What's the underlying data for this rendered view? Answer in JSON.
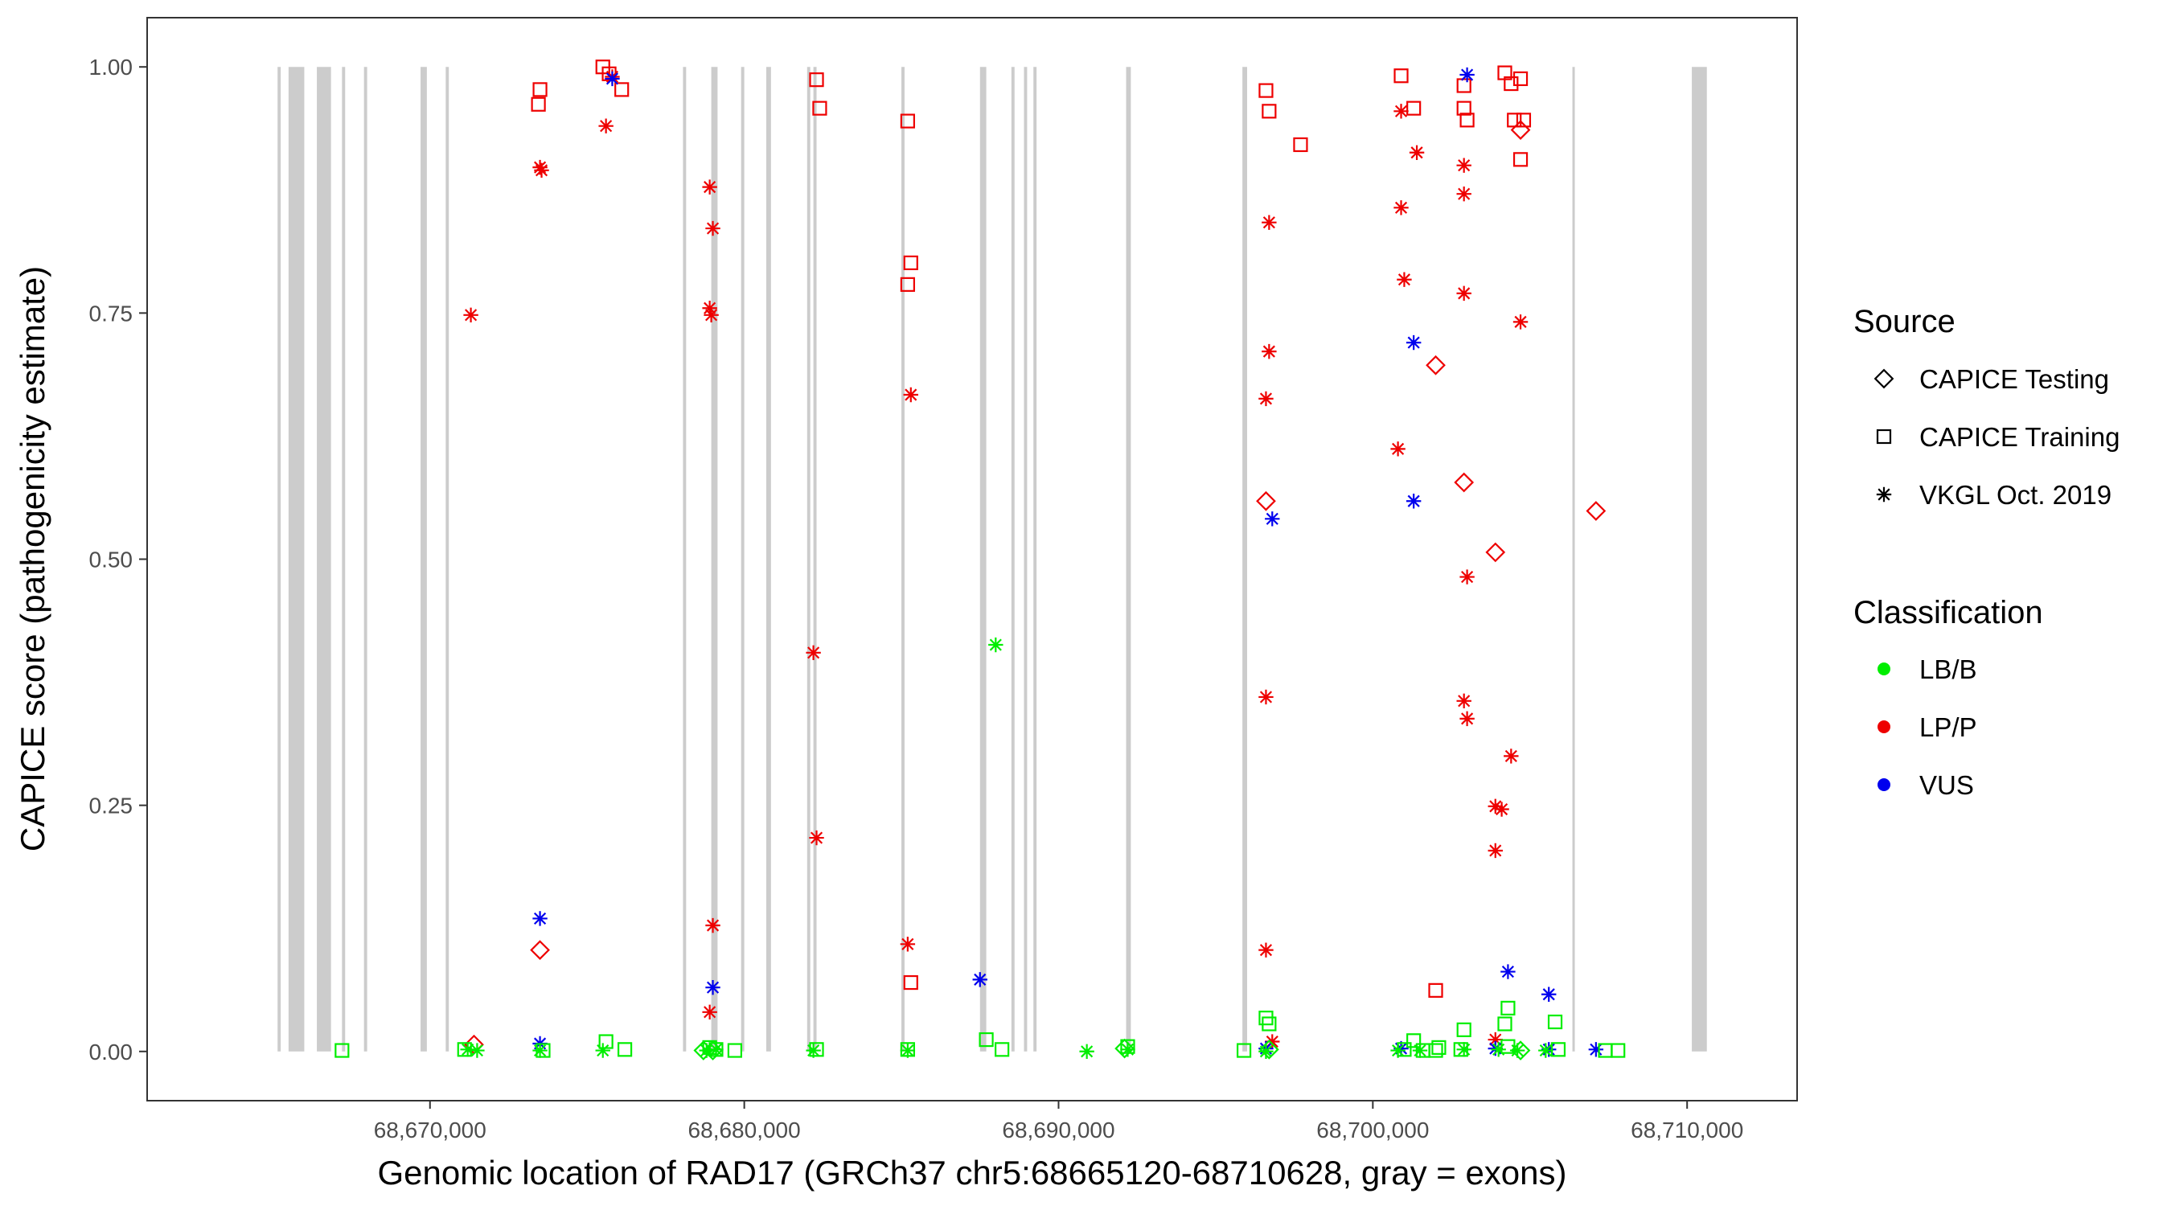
{
  "chart_data": {
    "type": "scatter",
    "xlabel": "Genomic location of RAD17 (GRCh37 chr5:68665120-68710628, gray = exons)",
    "ylabel": "CAPICE score (pathogenicity estimate)",
    "xlim": [
      68661000,
      68713500
    ],
    "ylim": [
      -0.05,
      1.05
    ],
    "x_ticks": [
      68670000,
      68680000,
      68690000,
      68700000,
      68710000
    ],
    "x_tick_labels": [
      "68,670,000",
      "68,680,000",
      "68,690,000",
      "68,700,000",
      "68,710,000"
    ],
    "y_ticks": [
      0,
      0.25,
      0.5,
      0.75,
      1.0
    ],
    "y_tick_labels": [
      "0.00",
      "0.25",
      "0.50",
      "0.75",
      "1.00"
    ],
    "grid": false,
    "legend_position": "right",
    "exons": [
      [
        68665150,
        68665250
      ],
      [
        68665500,
        68666000
      ],
      [
        68666400,
        68666850
      ],
      [
        68667200,
        68667300
      ],
      [
        68667900,
        68668000
      ],
      [
        68669700,
        68669900
      ],
      [
        68670500,
        68670600
      ],
      [
        68678050,
        68678150
      ],
      [
        68678950,
        68679150
      ],
      [
        68679900,
        68680000
      ],
      [
        68680700,
        68680850
      ],
      [
        68682000,
        68682100
      ],
      [
        68682200,
        68682300
      ],
      [
        68685000,
        68685100
      ],
      [
        68687500,
        68687700
      ],
      [
        68688500,
        68688600
      ],
      [
        68688900,
        68689000
      ],
      [
        68689200,
        68689300
      ],
      [
        68692150,
        68692300
      ],
      [
        68695850,
        68696000
      ],
      [
        68706350,
        68706400
      ],
      [
        68710150,
        68710628
      ]
    ],
    "exon_color": "#cccccc",
    "legend": {
      "source": {
        "title": "Source",
        "items": [
          {
            "label": "CAPICE Testing",
            "shape": "diamond"
          },
          {
            "label": "CAPICE Training",
            "shape": "square"
          },
          {
            "label": "VKGL Oct. 2019",
            "shape": "asterisk"
          }
        ]
      },
      "classification": {
        "title": "Classification",
        "items": [
          {
            "label": "LB/B",
            "color": "#00ee00"
          },
          {
            "label": "LP/P",
            "color": "#ee0000"
          },
          {
            "label": "VUS",
            "color": "#0000ee"
          }
        ]
      }
    },
    "series": [
      {
        "classification": "LP/P",
        "source": "CAPICE Training",
        "color": "#ee0000",
        "shape": "square",
        "points": [
          [
            68673500,
            0.977
          ],
          [
            68673450,
            0.962
          ],
          [
            68675500,
            1.0
          ],
          [
            68675700,
            0.993
          ],
          [
            68676100,
            0.977
          ],
          [
            68682300,
            0.987
          ],
          [
            68682400,
            0.958
          ],
          [
            68685200,
            0.945
          ],
          [
            68685300,
            0.801
          ],
          [
            68685200,
            0.779
          ],
          [
            68685300,
            0.07
          ],
          [
            68696600,
            0.976
          ],
          [
            68696700,
            0.955
          ],
          [
            68697700,
            0.921
          ],
          [
            68700900,
            0.991
          ],
          [
            68701300,
            0.958
          ],
          [
            68702000,
            0.062
          ],
          [
            68702900,
            0.981
          ],
          [
            68702900,
            0.958
          ],
          [
            68703000,
            0.946
          ],
          [
            68704200,
            0.994
          ],
          [
            68704400,
            0.983
          ],
          [
            68704700,
            0.988
          ],
          [
            68704500,
            0.946
          ],
          [
            68704800,
            0.946
          ],
          [
            68704700,
            0.906
          ]
        ]
      },
      {
        "classification": "LP/P",
        "source": "VKGL Oct. 2019",
        "color": "#ee0000",
        "shape": "asterisk",
        "points": [
          [
            68671300,
            0.748
          ],
          [
            68673500,
            0.898
          ],
          [
            68673550,
            0.895
          ],
          [
            68675600,
            0.94
          ],
          [
            68675800,
            0.99
          ],
          [
            68678900,
            0.878
          ],
          [
            68679000,
            0.836
          ],
          [
            68678900,
            0.755
          ],
          [
            68678950,
            0.748
          ],
          [
            68679000,
            0.128
          ],
          [
            68678900,
            0.04
          ],
          [
            68682200,
            0.405
          ],
          [
            68682300,
            0.217
          ],
          [
            68685300,
            0.667
          ],
          [
            68685200,
            0.109
          ],
          [
            68696700,
            0.842
          ],
          [
            68696700,
            0.711
          ],
          [
            68696600,
            0.663
          ],
          [
            68696600,
            0.36
          ],
          [
            68696600,
            0.103
          ],
          [
            68696800,
            0.01
          ],
          [
            68700900,
            0.955
          ],
          [
            68701400,
            0.913
          ],
          [
            68700900,
            0.857
          ],
          [
            68701000,
            0.784
          ],
          [
            68700800,
            0.612
          ],
          [
            68702900,
            0.9
          ],
          [
            68702900,
            0.871
          ],
          [
            68702900,
            0.77
          ],
          [
            68703000,
            0.482
          ],
          [
            68702900,
            0.356
          ],
          [
            68703000,
            0.338
          ],
          [
            68704400,
            0.3
          ],
          [
            68703900,
            0.249
          ],
          [
            68704100,
            0.246
          ],
          [
            68703900,
            0.204
          ],
          [
            68704700,
            0.741
          ],
          [
            68703900,
            0.012
          ]
        ]
      },
      {
        "classification": "LP/P",
        "source": "CAPICE Testing",
        "color": "#ee0000",
        "shape": "diamond",
        "points": [
          [
            68671400,
            0.007
          ],
          [
            68673500,
            0.103
          ],
          [
            68696600,
            0.559
          ],
          [
            68702000,
            0.697
          ],
          [
            68702900,
            0.578
          ],
          [
            68703900,
            0.507
          ],
          [
            68704700,
            0.936
          ],
          [
            68707100,
            0.549
          ]
        ]
      },
      {
        "classification": "VUS",
        "source": "VKGL Oct. 2019",
        "color": "#0000ee",
        "shape": "asterisk",
        "points": [
          [
            68673500,
            0.135
          ],
          [
            68673500,
            0.008
          ],
          [
            68675800,
            0.988
          ],
          [
            68679000,
            0.065
          ],
          [
            68687500,
            0.073
          ],
          [
            68696800,
            0.541
          ],
          [
            68696600,
            0.003
          ],
          [
            68701300,
            0.72
          ],
          [
            68701300,
            0.559
          ],
          [
            68700900,
            0.003
          ],
          [
            68703000,
            0.992
          ],
          [
            68704300,
            0.081
          ],
          [
            68703900,
            0.003
          ],
          [
            68705600,
            0.058
          ],
          [
            68705600,
            0.002
          ],
          [
            68707100,
            0.002
          ]
        ]
      },
      {
        "classification": "LB/B",
        "source": "VKGL Oct. 2019",
        "color": "#00ee00",
        "shape": "asterisk",
        "points": [
          [
            68671200,
            0.002
          ],
          [
            68671500,
            0.001
          ],
          [
            68673500,
            0.001
          ],
          [
            68675500,
            0.001
          ],
          [
            68678800,
            0.001
          ],
          [
            68679100,
            0.002
          ],
          [
            68682200,
            0.001
          ],
          [
            68685200,
            0.001
          ],
          [
            68688000,
            0.413
          ],
          [
            68690900,
            0.0
          ],
          [
            68692200,
            0.002
          ],
          [
            68696600,
            0.0
          ],
          [
            68700800,
            0.001
          ],
          [
            68701500,
            0.001
          ],
          [
            68702900,
            0.002
          ],
          [
            68704000,
            0.002
          ],
          [
            68704600,
            0.001
          ],
          [
            68705500,
            0.001
          ]
        ]
      },
      {
        "classification": "LB/B",
        "source": "CAPICE Training",
        "color": "#00ee00",
        "shape": "square",
        "points": [
          [
            68667200,
            0.001
          ],
          [
            68671100,
            0.002
          ],
          [
            68673600,
            0.001
          ],
          [
            68675600,
            0.01
          ],
          [
            68676200,
            0.002
          ],
          [
            68678900,
            0.004
          ],
          [
            68679100,
            0.002
          ],
          [
            68679700,
            0.001
          ],
          [
            68682300,
            0.002
          ],
          [
            68685200,
            0.002
          ],
          [
            68687700,
            0.012
          ],
          [
            68688200,
            0.002
          ],
          [
            68692200,
            0.005
          ],
          [
            68695900,
            0.001
          ],
          [
            68696600,
            0.034
          ],
          [
            68696700,
            0.028
          ],
          [
            68701000,
            0.002
          ],
          [
            68701300,
            0.011
          ],
          [
            68701600,
            0.001
          ],
          [
            68702000,
            0.001
          ],
          [
            68702100,
            0.004
          ],
          [
            68702800,
            0.002
          ],
          [
            68702900,
            0.022
          ],
          [
            68704300,
            0.044
          ],
          [
            68704200,
            0.028
          ],
          [
            68704300,
            0.005
          ],
          [
            68705800,
            0.03
          ],
          [
            68705900,
            0.002
          ],
          [
            68707400,
            0.001
          ],
          [
            68707800,
            0.001
          ]
        ]
      },
      {
        "classification": "LB/B",
        "source": "CAPICE Testing",
        "color": "#00ee00",
        "shape": "diamond",
        "points": [
          [
            68678700,
            0.001
          ],
          [
            68679000,
            0.001
          ],
          [
            68692100,
            0.003
          ],
          [
            68696700,
            0.002
          ],
          [
            68704700,
            0.001
          ]
        ]
      }
    ]
  }
}
